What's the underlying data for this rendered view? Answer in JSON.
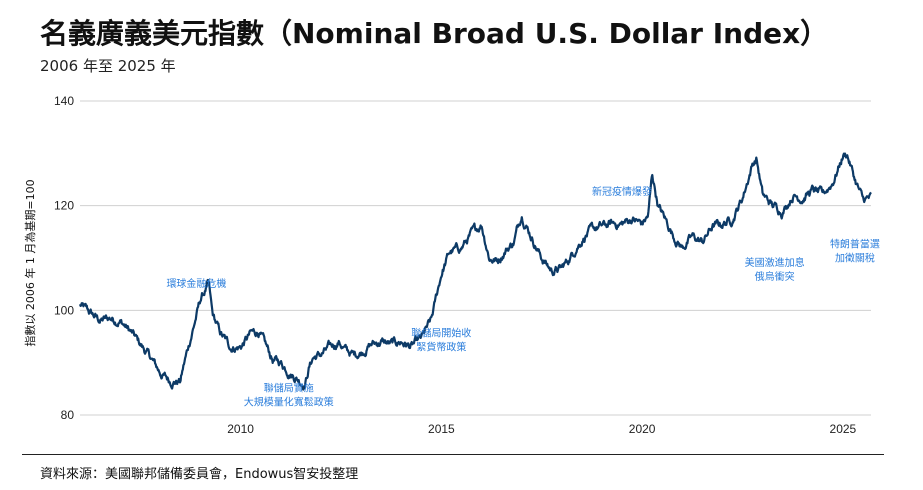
{
  "header": {
    "title": "名義廣義美元指數（Nominal Broad U.S. Dollar Index）",
    "subtitle": "2006 年至 2025 年"
  },
  "footer": {
    "source": "資料來源：美國聯邦儲備委員會，Endowus智安投整理"
  },
  "colors": {
    "line": "#0d3a66",
    "annotation": "#2a7ddb",
    "grid": "#d0d0d0"
  },
  "chart_data": {
    "type": "line",
    "title": "名義廣義美元指數（Nominal Broad U.S. Dollar Index）",
    "subtitle": "2006 年至 2025 年",
    "ylabel": "指數以 2006 年 1 月為基期=100",
    "xlabel": "",
    "ylim": [
      80,
      140
    ],
    "y_ticks": [
      80,
      100,
      120,
      140
    ],
    "x_ticks": [
      2010,
      2015,
      2020,
      2025
    ],
    "xlim": [
      2006.0,
      2025.7
    ],
    "grid": "horizontal",
    "series": [
      {
        "x": [
          2006.0,
          2006.25,
          2006.5,
          2006.75,
          2007.0,
          2007.25,
          2007.5,
          2007.75,
          2008.0,
          2008.25,
          2008.5,
          2008.6,
          2008.8,
          2009.0,
          2009.1,
          2009.2,
          2009.3,
          2009.5,
          2009.75,
          2010.0,
          2010.25,
          2010.45,
          2010.6,
          2010.8,
          2011.0,
          2011.25,
          2011.5,
          2011.6,
          2011.7,
          2011.8,
          2012.0,
          2012.25,
          2012.45,
          2012.6,
          2012.8,
          2013.0,
          2013.25,
          2013.5,
          2013.75,
          2014.0,
          2014.25,
          2014.5,
          2014.75,
          2015.0,
          2015.2,
          2015.5,
          2015.75,
          2016.0,
          2016.2,
          2016.4,
          2016.6,
          2016.8,
          2017.0,
          2017.25,
          2017.5,
          2017.75,
          2018.0,
          2018.2,
          2018.4,
          2018.6,
          2018.8,
          2019.0,
          2019.25,
          2019.5,
          2019.75,
          2020.0,
          2020.15,
          2020.25,
          2020.4,
          2020.6,
          2020.8,
          2021.0,
          2021.25,
          2021.5,
          2021.75,
          2022.0,
          2022.25,
          2022.5,
          2022.75,
          2022.85,
          2023.0,
          2023.25,
          2023.5,
          2023.75,
          2024.0,
          2024.25,
          2024.5,
          2024.75,
          2025.0,
          2025.1,
          2025.3,
          2025.5,
          2025.7
        ],
        "values": [
          101.0,
          99.5,
          98.0,
          98.5,
          98.0,
          96.0,
          93.5,
          91.0,
          88.0,
          86.5,
          86.5,
          90.0,
          96.0,
          102.0,
          103.5,
          105.0,
          99.0,
          95.5,
          93.0,
          93.0,
          95.5,
          96.0,
          93.5,
          90.5,
          90.0,
          88.0,
          86.5,
          86.0,
          89.0,
          91.0,
          91.5,
          93.0,
          94.0,
          92.5,
          91.5,
          92.0,
          93.5,
          94.0,
          93.5,
          94.0,
          93.0,
          94.5,
          98.0,
          107.0,
          111.0,
          112.0,
          114.5,
          116.5,
          110.0,
          109.5,
          111.5,
          113.0,
          118.5,
          114.0,
          110.0,
          107.5,
          108.0,
          110.0,
          112.5,
          114.5,
          115.5,
          116.0,
          116.5,
          116.5,
          117.5,
          116.5,
          118.0,
          126.0,
          120.0,
          117.0,
          114.0,
          112.0,
          114.0,
          113.0,
          116.0,
          116.5,
          117.5,
          121.5,
          128.0,
          129.0,
          122.0,
          120.0,
          119.0,
          122.0,
          121.5,
          123.0,
          122.0,
          124.5,
          129.5,
          130.0,
          125.0,
          121.0,
          121.5
        ]
      }
    ],
    "annotations": [
      {
        "lines": [
          "環球金融危機"
        ],
        "x": 2008.9,
        "y": 104.5
      },
      {
        "lines": [
          "聯儲局實施",
          "大規模量化寬鬆政策"
        ],
        "x": 2011.2,
        "y": 84.5
      },
      {
        "lines": [
          "聯儲局開始收",
          "緊貨幣政策"
        ],
        "x": 2015.0,
        "y": 95.0
      },
      {
        "lines": [
          "新冠疫情爆發"
        ],
        "x": 2019.5,
        "y": 122.0
      },
      {
        "lines": [
          "美國激進加息",
          "俄烏衝突"
        ],
        "x": 2023.3,
        "y": 108.5
      },
      {
        "lines": [
          "特朗普當選",
          "加徵關稅"
        ],
        "x": 2025.3,
        "y": 112.0
      }
    ]
  }
}
